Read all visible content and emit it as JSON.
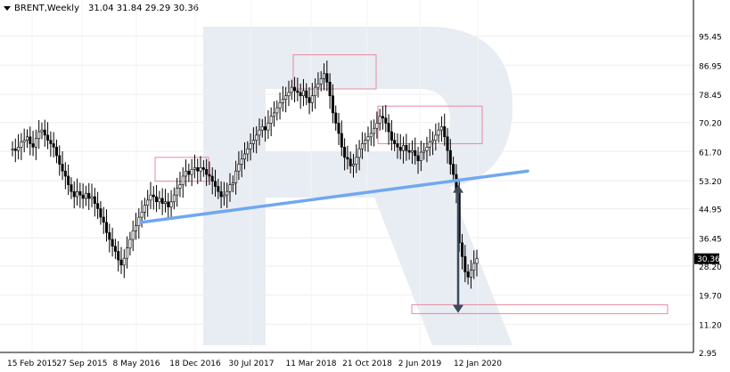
{
  "header": {
    "symbol": "BRENT,Weekly",
    "ohlc": "31.04 31.84 29.29 30.36"
  },
  "colors": {
    "candle": "#000000",
    "trendline": "#6fa8f0",
    "zone": "#e58aa0",
    "arrow": "#3b4a5a",
    "watermark": "#e8ecf3",
    "price_tag_bg": "#000000",
    "price_tag_text": "#ffffff"
  },
  "chart_data": {
    "type": "candlestick",
    "title": "BRENT,Weekly",
    "ylim": [
      2.95,
      103.95
    ],
    "yticks": [
      95.45,
      86.95,
      78.45,
      70.2,
      61.7,
      53.2,
      44.95,
      36.45,
      28.2,
      19.7,
      11.2,
      2.95
    ],
    "yticks_display": [
      "95.45",
      "86.95",
      "78.45",
      "70.20",
      "61.70",
      "53.20",
      "44.95",
      "36.45",
      "28.20",
      "19.70",
      "11.20",
      "2.95"
    ],
    "xticks": [
      "15 Feb 2015",
      "27 Sep 2015",
      "8 May 2016",
      "18 Dec 2016",
      "30 Jul 2017",
      "11 Mar 2018",
      "21 Oct 2018",
      "2 Jun 2019",
      "12 Jan 2020"
    ],
    "current_price": "30.36",
    "series": [
      {
        "values": [
          62.5,
          62.0,
          63.0,
          64.5,
          65.0,
          66.0,
          64.0,
          63.0,
          65.5,
          67.5,
          68.0,
          66.5,
          65.0,
          64.0,
          63.0,
          60.5,
          58.0,
          56.0,
          54.5,
          52.0,
          50.0,
          48.5,
          50.0,
          49.0,
          48.0,
          49.5,
          48.0,
          48.5,
          46.5,
          45.0,
          42.5,
          41.0,
          38.0,
          36.0,
          34.0,
          32.5,
          30.0,
          28.5,
          30.5,
          33.5,
          36.0,
          38.5,
          40.0,
          42.5,
          44.0,
          46.0,
          47.5,
          49.0,
          48.5,
          47.0,
          48.0,
          46.5,
          47.0,
          45.5,
          47.0,
          49.0,
          51.0,
          52.0,
          54.5,
          56.0,
          55.0,
          56.5,
          57.0,
          56.0,
          57.0,
          56.5,
          55.0,
          54.5,
          53.0,
          51.5,
          50.0,
          48.5,
          49.0,
          50.0,
          52.0,
          52.5,
          56.0,
          58.0,
          59.5,
          61.0,
          62.5,
          64.0,
          65.0,
          66.5,
          68.0,
          69.0,
          68.0,
          70.0,
          72.0,
          73.0,
          74.5,
          76.0,
          77.0,
          78.0,
          79.0,
          80.5,
          79.5,
          79.0,
          78.0,
          79.5,
          77.5,
          76.0,
          78.0,
          80.5,
          81.5,
          83.0,
          84.5,
          82.0,
          78.0,
          73.0,
          70.0,
          67.0,
          63.0,
          60.0,
          59.5,
          57.5,
          58.0,
          60.0,
          62.5,
          64.0,
          65.0,
          66.0,
          67.0,
          68.5,
          70.0,
          72.0,
          71.5,
          70.0,
          67.5,
          65.0,
          64.0,
          63.0,
          62.0,
          63.5,
          62.0,
          61.5,
          62.0,
          60.5,
          59.0,
          61.5,
          62.0,
          63.0,
          64.5,
          65.0,
          66.5,
          68.0,
          69.0,
          66.0,
          62.0,
          58.0,
          55.0,
          50.0,
          35.0,
          31.0,
          26.5,
          25.0,
          27.0,
          29.0,
          30.4
        ],
        "x_anchor_labels": [
          "15 Feb 2015",
          "12 Jan 2020"
        ]
      }
    ],
    "trendline": {
      "from": {
        "x": "11 Apr 2016",
        "y": 41.0
      },
      "to": {
        "x": "7 Jun 2020",
        "y": 56.0
      }
    },
    "zones": [
      {
        "x_from": "Nov 2016",
        "x_to": "Mar 2017",
        "y_from": 53.0,
        "y_to": 60.0
      },
      {
        "x_from": "Feb 2018",
        "x_to": "Jul 2018",
        "y_from": 80.0,
        "y_to": 90.0
      },
      {
        "x_from": "Sep 2018",
        "x_to": "Mar 2020",
        "y_from": 64.0,
        "y_to": 75.0
      },
      {
        "x_from": "Oct 2019",
        "x_to": "Dec 2021",
        "y_from": 14.3,
        "y_to": 16.9
      }
    ],
    "arrow": {
      "x": "Dec 2019",
      "y_from": 52.0,
      "y_to": 14.5
    },
    "grid": true,
    "legend": "none"
  }
}
